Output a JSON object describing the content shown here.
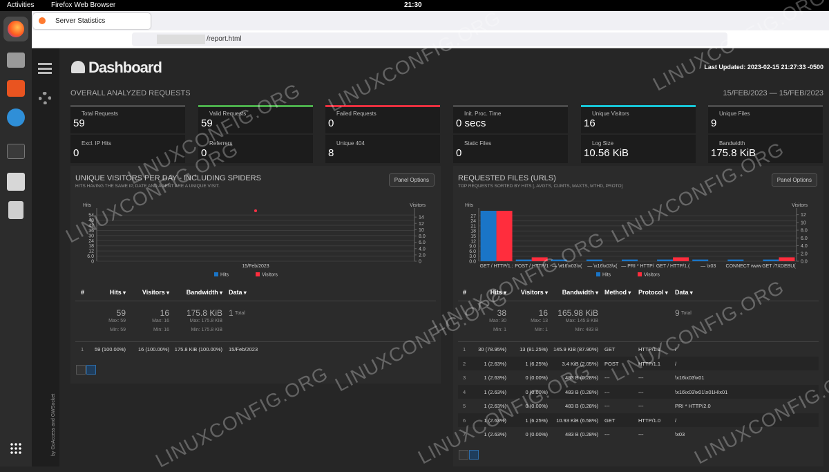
{
  "topbar": {
    "activities": "Activities",
    "app": "Firefox Web Browser",
    "clock": "21:30"
  },
  "browser": {
    "tab": "Server Statistics",
    "url": "/report.html"
  },
  "header": {
    "title": "Dashboard",
    "last_updated_label": "Last Updated:",
    "last_updated": "2023-02-15 21:27:33 -0500"
  },
  "sidebar": {
    "credit": "by GoAccess and GWSocket"
  },
  "overall": {
    "title": "OVERALL ANALYZED REQUESTS",
    "date_range": "15/FEB/2023 — 15/FEB/2023",
    "metrics": [
      {
        "label": "Total Requests",
        "value": "59",
        "accent": "#4a4a4a"
      },
      {
        "label": "Valid Requests",
        "value": "59",
        "accent": "#4cae4c"
      },
      {
        "label": "Failed Requests",
        "value": "0",
        "accent": "#e8303f"
      },
      {
        "label": "Init. Proc. Time",
        "value": "0 secs",
        "accent": "#4a4a4a"
      },
      {
        "label": "Unique Visitors",
        "value": "16",
        "accent": "#17c5d6"
      },
      {
        "label": "Unique Files",
        "value": "9",
        "accent": "#4a4a4a"
      },
      {
        "label": "Excl. IP Hits",
        "value": "0"
      },
      {
        "label": "Referrers",
        "value": "0"
      },
      {
        "label": "Unique 404",
        "value": "8"
      },
      {
        "label": "Static Files",
        "value": "0"
      },
      {
        "label": "Log Size",
        "value": "10.56 KiB"
      },
      {
        "label": "Bandwidth",
        "value": "175.8 KiB"
      }
    ]
  },
  "panels": [
    {
      "title": "UNIQUE VISITORS PER DAY - INCLUDING SPIDERS",
      "subtitle": "HITS HAVING THE SAME IP, DATE AND AGENT ARE A UNIQUE VISIT.",
      "options": "Panel Options",
      "chart": {
        "type": "line",
        "categories": [
          "15/Feb/2023"
        ],
        "y_label": "Hits",
        "y2_label": "Visitors",
        "series": [
          {
            "name": "Hits",
            "color": "#1a75c7",
            "values": [
              59
            ]
          },
          {
            "name": "Visitors",
            "color": "#ff2d3d",
            "values": [
              16
            ],
            "axis": "y2"
          }
        ],
        "ylim": [
          0,
          59
        ],
        "yticks": [
          0,
          {
            "value": 6,
            "label": "6.0"
          },
          12,
          18,
          24,
          30,
          36,
          42,
          48,
          54
        ],
        "y2lim": [
          0,
          16
        ],
        "y2ticks": [
          0,
          {
            "value": 2,
            "label": "2.0"
          },
          {
            "value": 4,
            "label": "4.0"
          },
          {
            "value": 6,
            "label": "6.0"
          },
          {
            "value": 8,
            "label": "8.0"
          },
          10,
          12,
          14
        ],
        "grid": true
      },
      "table": {
        "headers": [
          "#",
          "Hits",
          "Visitors",
          "Bandwidth",
          "Data"
        ],
        "summary": [
          {
            "value": "59",
            "max": "Max: 59",
            "min": "Min: 59"
          },
          {
            "value": "16",
            "max": "Max: 16",
            "min": "Min: 16"
          },
          {
            "value": "175.8 KiB",
            "max": "Max: 175.8 KiB",
            "min": "Min: 175.8 KiB"
          },
          {
            "value": "1",
            "unit": "Total"
          }
        ],
        "rows": [
          [
            "1",
            "59 (100.00%)",
            "16 (100.00%)",
            "175.8 KiB (100.00%)",
            "15/Feb/2023"
          ]
        ]
      }
    },
    {
      "title": "REQUESTED FILES (URLS)",
      "subtitle": "TOP REQUESTS SORTED BY HITS [, AVGTS, CUMTS, MAXTS, MTHD, PROTO]",
      "options": "Panel Options",
      "chart": {
        "type": "bar",
        "categories": [
          "GET / HTTP/1.:",
          "POST / HTTP/1",
          "— \\x16\\x03\\x(",
          "— \\x16\\x03\\x(",
          "— PRI * HTTP/",
          "GET / HTTP/1.(",
          "— \\x03",
          "CONNECT www",
          "GET /?XDEBU("
        ],
        "y_label": "Hits",
        "y2_label": "Visitors",
        "series": [
          {
            "name": "Hits",
            "color": "#1a75c7",
            "values": [
              30,
              1,
              1,
              1,
              1,
              1,
              1,
              1,
              1
            ]
          },
          {
            "name": "Visitors",
            "color": "#ff2d3d",
            "values": [
              13,
              1,
              0,
              0,
              0,
              1,
              0,
              0,
              1
            ],
            "axis": "y2"
          }
        ],
        "ylim": [
          0,
          30
        ],
        "yticks": [
          {
            "value": 0,
            "label": "0.0"
          },
          {
            "value": 3,
            "label": "3.0"
          },
          {
            "value": 6,
            "label": "6.0"
          },
          {
            "value": 9,
            "label": "9.0"
          },
          12,
          15,
          18,
          21,
          24,
          27
        ],
        "y2lim": [
          0,
          13
        ],
        "y2ticks": [
          {
            "value": 0,
            "label": "0.0"
          },
          {
            "value": 2,
            "label": "2.0"
          },
          {
            "value": 4,
            "label": "4.0"
          },
          {
            "value": 6,
            "label": "6.0"
          },
          {
            "value": 8,
            "label": "8.0"
          },
          10,
          12
        ],
        "grid": true
      },
      "table": {
        "headers": [
          "#",
          "Hits",
          "Visitors",
          "Bandwidth",
          "Method",
          "Protocol",
          "Data"
        ],
        "summary": [
          {
            "value": "38",
            "max": "Max: 30",
            "min": "Min: 1"
          },
          {
            "value": "16",
            "max": "Max: 13",
            "min": "Min: 1"
          },
          {
            "value": "165.98 KiB",
            "max": "Max: 145.9 KiB",
            "min": "Min: 483 B"
          },
          {
            "value": "9",
            "unit": "Total"
          }
        ],
        "rows": [
          [
            "1",
            "30 (78.95%)",
            "13 (81.25%)",
            "145.9 KiB (87.90%)",
            "GET",
            "HTTP/1.1",
            "/"
          ],
          [
            "2",
            "1 (2.63%)",
            "1 (6.25%)",
            "3.4 KiB (2.05%)",
            "POST",
            "HTTP/1.1",
            "/"
          ],
          [
            "3",
            "1 (2.63%)",
            "0 (0.00%)",
            "483 B (0.28%)",
            "---",
            "---",
            "\\x16\\x03\\x01"
          ],
          [
            "4",
            "1 (2.63%)",
            "0 (0.00%)",
            "483 B (0.28%)",
            "---",
            "---",
            "\\x16\\x03\\x01\\x01H\\x01"
          ],
          [
            "5",
            "1 (2.63%)",
            "0 (0.00%)",
            "483 B (0.28%)",
            "---",
            "---",
            "PRI * HTTP/2.0"
          ],
          [
            "6",
            "1 (2.63%)",
            "1 (6.25%)",
            "10.93 KiB (6.58%)",
            "GET",
            "HTTP/1.0",
            "/"
          ],
          [
            "7",
            "1 (2.63%)",
            "0 (0.00%)",
            "483 B (0.28%)",
            "---",
            "---",
            "\\x03"
          ]
        ]
      }
    }
  ],
  "watermark": "LINUXCONFIG.ORG"
}
